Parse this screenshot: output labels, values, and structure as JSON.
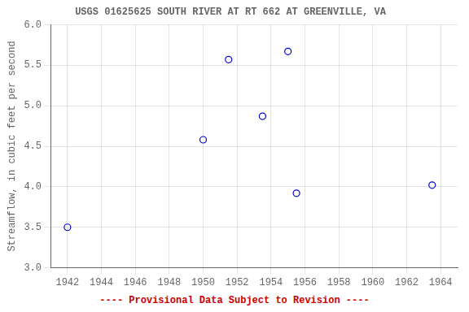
{
  "chart_data": {
    "type": "scatter",
    "title": "USGS 01625625 SOUTH RIVER AT RT 662 AT GREENVILLE, VA",
    "y_label": "Streamflow, in cubic feet per second",
    "annotations": [
      "---- Provisional Data Subject to Revision ----"
    ],
    "x": [
      1942,
      1950,
      1951.5,
      1953.5,
      1955,
      1955.5,
      1963.5
    ],
    "values": [
      3.5,
      4.58,
      5.57,
      4.87,
      5.67,
      3.92,
      4.02
    ],
    "color": "#0000cc",
    "marker": "open circle",
    "xlim": [
      1941,
      1965
    ],
    "ylim": [
      3.0,
      6.0
    ],
    "xticks": [
      1942,
      1944,
      1946,
      1948,
      1950,
      1952,
      1954,
      1956,
      1958,
      1960,
      1962,
      1964
    ],
    "yticks": [
      {
        "value": 3.0,
        "label": "3.0"
      },
      3.5,
      {
        "value": 4.0,
        "label": "4.0"
      },
      4.5,
      {
        "value": 5.0,
        "label": "5.0"
      },
      5.5,
      {
        "value": 6.0,
        "label": "6.0"
      }
    ],
    "grid": true
  }
}
